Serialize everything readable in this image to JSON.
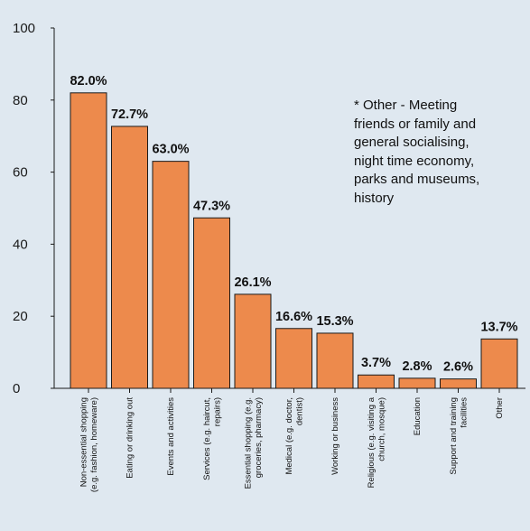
{
  "chart_data": {
    "type": "bar",
    "categories": [
      [
        "Non-essential shopping",
        "(e.g. fashion, homeware)"
      ],
      [
        "Eating or drinking out"
      ],
      [
        "Events and activities"
      ],
      [
        "Services (e.g. haircut,",
        "repairs)"
      ],
      [
        "Essential shopping (e.g.",
        "groceries, pharmacy)"
      ],
      [
        "Medical (e.g. doctor,",
        "dentist)"
      ],
      [
        "Working or business"
      ],
      [
        "Religious (e.g. visiting a",
        "church, mosque)"
      ],
      [
        "Education"
      ],
      [
        "Support and training",
        "facilities"
      ],
      [
        "Other"
      ]
    ],
    "values": [
      82.0,
      72.7,
      63.0,
      47.3,
      26.1,
      16.6,
      15.3,
      3.7,
      2.8,
      2.6,
      13.7
    ],
    "value_labels": [
      "82.0%",
      "72.7%",
      "63.0%",
      "47.3%",
      "26.1%",
      "16.6%",
      "15.3%",
      "3.7%",
      "2.8%",
      "2.6%",
      "13.7%"
    ],
    "ylim": [
      0,
      100
    ],
    "yticks": [
      0,
      20,
      40,
      60,
      80,
      100
    ],
    "bar_color": "#ed8a4c",
    "bar_edge_color": "#1a1a1a",
    "background": "#dfe8f0",
    "title": "",
    "xlabel": "",
    "ylabel": ""
  },
  "annotation": {
    "lines": [
      "* Other - Meeting",
      "friends or family and",
      "general socialising,",
      "night time economy,",
      "parks and museums,",
      "history"
    ]
  }
}
